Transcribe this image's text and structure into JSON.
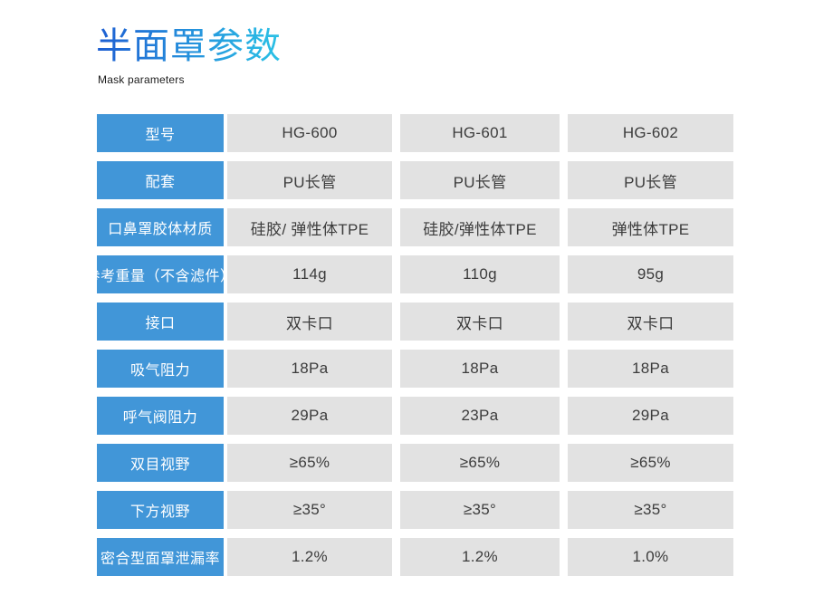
{
  "page": {
    "title": "半面罩参数",
    "subtitle": "Mask parameters"
  },
  "colors": {
    "title_gradient_start": "#1e5ed2",
    "title_gradient_end": "#2bc2e6",
    "label_cell_blue": "#4196d8",
    "label_text_white": "#ffffff",
    "data_cell_gray": "#e2e2e2",
    "data_text": "#3c3c3c"
  },
  "table": {
    "columns": [
      "HG-600",
      "HG-601",
      "HG-602"
    ],
    "rows": [
      {
        "label": "型号",
        "values": [
          "HG-600",
          "HG-601",
          "HG-602"
        ]
      },
      {
        "label": "配套",
        "values": [
          "PU长管",
          "PU长管",
          "PU长管"
        ]
      },
      {
        "label": "口鼻罩胶体材质",
        "values": [
          "硅胶/ 弹性体TPE",
          "硅胶/弹性体TPE",
          "弹性体TPE"
        ]
      },
      {
        "label": "参考重量（不含滤件）",
        "values": [
          "114g",
          "110g",
          "95g"
        ]
      },
      {
        "label": "接口",
        "values": [
          "双卡口",
          "双卡口",
          "双卡口"
        ]
      },
      {
        "label": "吸气阻力",
        "values": [
          "18Pa",
          "18Pa",
          "18Pa"
        ]
      },
      {
        "label": "呼气阀阻力",
        "values": [
          "29Pa",
          "23Pa",
          "29Pa"
        ]
      },
      {
        "label": "双目视野",
        "values": [
          "≥65%",
          "≥65%",
          "≥65%"
        ]
      },
      {
        "label": "下方视野",
        "values": [
          "≥35°",
          "≥35°",
          "≥35°"
        ]
      },
      {
        "label": "密合型面罩泄漏率",
        "values": [
          "1.2%",
          "1.2%",
          "1.0%"
        ]
      }
    ]
  }
}
